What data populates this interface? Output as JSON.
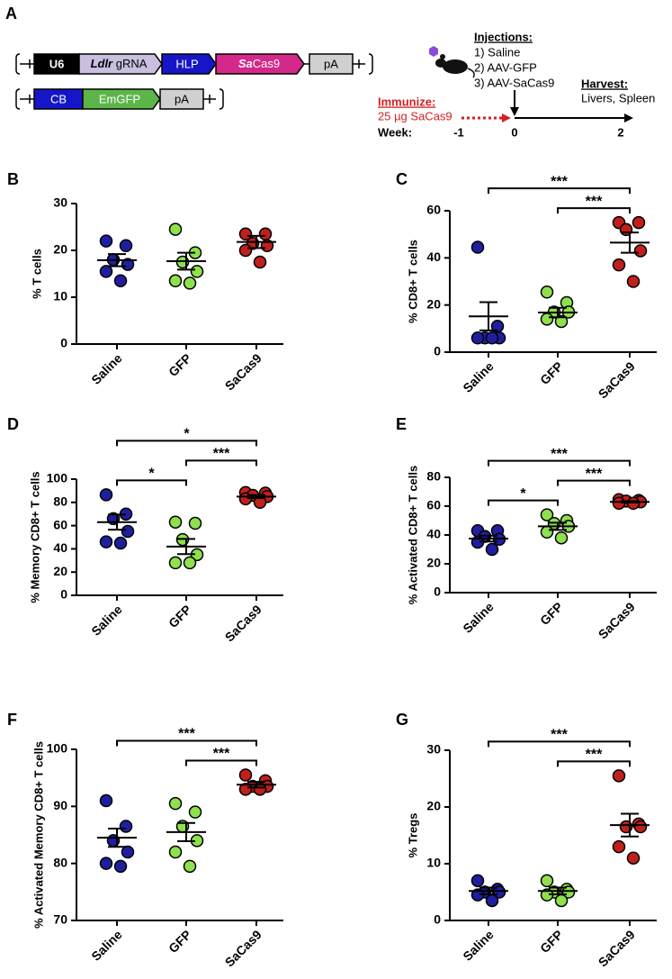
{
  "diagram": {
    "panel": "A",
    "u6": "U6",
    "ldlr": "Ldlr",
    "grna": " gRNA",
    "hlp": "HLP",
    "sa": "Sa",
    "cas9": "Cas9",
    "pa1": "pA",
    "cb": "CB",
    "emgfp": "EmGFP",
    "pa2": "pA",
    "injections_title": "Injections:",
    "injections": [
      "1) Saline",
      "2) AAV-GFP",
      "3) AAV-SaCas9"
    ],
    "harvest_title": "Harvest:",
    "harvest": "Livers, Spleen",
    "immunize_title": "Immunize:",
    "immunize": "25 µg SaCas9",
    "week_label": "Week:",
    "weeks": [
      "-1",
      "0",
      "2"
    ]
  },
  "chart_data": [
    {
      "type": "dot",
      "panel": "B",
      "ylabel": "% T cells",
      "categories": [
        "Saline",
        "GFP",
        "SaCas9"
      ],
      "colors": [
        "#1f1f9e",
        "#8fe04e",
        "#c0201d"
      ],
      "values": [
        [
          22,
          21,
          18,
          17,
          15.5,
          13.5
        ],
        [
          24.5,
          19.5,
          17.5,
          15.5,
          13.5,
          13
        ],
        [
          23.5,
          23.5,
          21.5,
          21,
          20,
          17.5
        ]
      ],
      "means": [
        17.9,
        17.7,
        21.8
      ],
      "sems": [
        1.3,
        1.8,
        1.3
      ],
      "ylim": [
        0,
        30
      ],
      "yticks": [
        0,
        10,
        20,
        30
      ],
      "brackets": []
    },
    {
      "type": "dot",
      "panel": "C",
      "ylabel": "% CD8+ T cells",
      "categories": [
        "Saline",
        "GFP",
        "SaCas9"
      ],
      "colors": [
        "#1f1f9e",
        "#8fe04e",
        "#c0201d"
      ],
      "values": [
        [
          44.5,
          11,
          6,
          6,
          6,
          6
        ],
        [
          25.5,
          21,
          17,
          17,
          14,
          13
        ],
        [
          55,
          55,
          52,
          43,
          37,
          30
        ]
      ],
      "means": [
        15.2,
        16.8,
        46.5
      ],
      "sems": [
        6,
        2,
        4.3
      ],
      "ylim": [
        0,
        60
      ],
      "yticks": [
        0,
        20,
        40,
        60
      ],
      "brackets": [
        {
          "from": 1,
          "to": 2,
          "label": "***"
        },
        {
          "from": 0,
          "to": 2,
          "label": "***"
        }
      ]
    },
    {
      "type": "dot",
      "panel": "D",
      "ylabel": "% Memory CD8+ T cells",
      "categories": [
        "Saline",
        "GFP",
        "SaCas9"
      ],
      "colors": [
        "#1f1f9e",
        "#8fe04e",
        "#c0201d"
      ],
      "values": [
        [
          86.5,
          70,
          66,
          55,
          46,
          45
        ],
        [
          63,
          62,
          48,
          35,
          28,
          28
        ],
        [
          88.5,
          88,
          86,
          85,
          83,
          80
        ]
      ],
      "means": [
        63,
        42,
        85
      ],
      "sems": [
        6.5,
        6.5,
        1.3
      ],
      "ylim": [
        0,
        100
      ],
      "yticks": [
        0,
        20,
        40,
        60,
        80,
        100
      ],
      "brackets": [
        {
          "from": 0,
          "to": 1,
          "label": "*"
        },
        {
          "from": 1,
          "to": 2,
          "label": "***"
        },
        {
          "from": 0,
          "to": 2,
          "label": "*"
        }
      ]
    },
    {
      "type": "dot",
      "panel": "E",
      "ylabel": "% Activated CD8+ T cells",
      "categories": [
        "Saline",
        "GFP",
        "SaCas9"
      ],
      "colors": [
        "#1f1f9e",
        "#8fe04e",
        "#c0201d"
      ],
      "values": [
        [
          43,
          43,
          39,
          37,
          35,
          30
        ],
        [
          54,
          50,
          48,
          46,
          42,
          38
        ],
        [
          64.5,
          64,
          63.5,
          63,
          62,
          62
        ]
      ],
      "means": [
        37.5,
        46,
        63
      ],
      "sems": [
        2,
        2.5,
        0.5
      ],
      "ylim": [
        0,
        80
      ],
      "yticks": [
        0,
        20,
        40,
        60,
        80
      ],
      "brackets": [
        {
          "from": 0,
          "to": 1,
          "label": "*"
        },
        {
          "from": 1,
          "to": 2,
          "label": "***"
        },
        {
          "from": 0,
          "to": 2,
          "label": "***"
        }
      ]
    },
    {
      "type": "dot",
      "panel": "F",
      "ylabel": "% Activated Memory CD8+ T cells",
      "categories": [
        "Saline",
        "GFP",
        "SaCas9"
      ],
      "colors": [
        "#1f1f9e",
        "#8fe04e",
        "#c0201d"
      ],
      "values": [
        [
          91,
          86.5,
          84,
          82,
          80,
          79.5
        ],
        [
          90.5,
          89,
          86.5,
          84,
          82,
          79.5
        ],
        [
          95.5,
          94.5,
          93.5,
          93.5,
          93,
          93
        ]
      ],
      "means": [
        84.5,
        85.5,
        93.8
      ],
      "sems": [
        1.6,
        1.6,
        0.5
      ],
      "ylim": [
        70,
        100
      ],
      "yticks": [
        70,
        80,
        90,
        100
      ],
      "brackets": [
        {
          "from": 1,
          "to": 2,
          "label": "***"
        },
        {
          "from": 0,
          "to": 2,
          "label": "***"
        }
      ]
    },
    {
      "type": "dot",
      "panel": "G",
      "ylabel": "% Tregs",
      "categories": [
        "Saline",
        "GFP",
        "SaCas9"
      ],
      "colors": [
        "#1f1f9e",
        "#8fe04e",
        "#c0201d"
      ],
      "values": [
        [
          7,
          5.5,
          5,
          5,
          4.5,
          3.5
        ],
        [
          7,
          5.5,
          5,
          5,
          4.5,
          3.5
        ],
        [
          25.5,
          17,
          16.5,
          16.5,
          13,
          11
        ]
      ],
      "means": [
        5.2,
        5.2,
        16.8
      ],
      "sems": [
        0.6,
        0.6,
        2
      ],
      "ylim": [
        0,
        30
      ],
      "yticks": [
        0,
        10,
        20,
        30
      ],
      "brackets": [
        {
          "from": 1,
          "to": 2,
          "label": "***"
        },
        {
          "from": 0,
          "to": 2,
          "label": "***"
        }
      ]
    }
  ]
}
